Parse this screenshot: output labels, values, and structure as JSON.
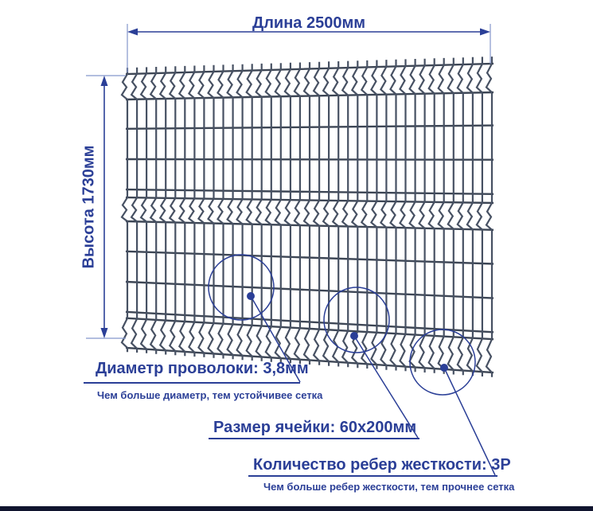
{
  "colors": {
    "accent": "#2b3f97",
    "extension_line": "#8496cc",
    "wire": "#475163",
    "wire_horizontal": "#3d4655",
    "bottom_bar": "#10142e"
  },
  "dimensions": {
    "length_label": "Длина 2500мм",
    "height_label": "Высота 1730мм"
  },
  "callouts": [
    {
      "title": "Диаметр проволоки: 3,8мм",
      "subtitle": "Чем больше диаметр, тем устойчивее сетка"
    },
    {
      "title": "Размер ячейки: 60х200мм"
    },
    {
      "title": "Количество ребер жесткости: 3Р",
      "subtitle": "Чем больше ребер жесткости, тем прочнее сетка"
    }
  ]
}
